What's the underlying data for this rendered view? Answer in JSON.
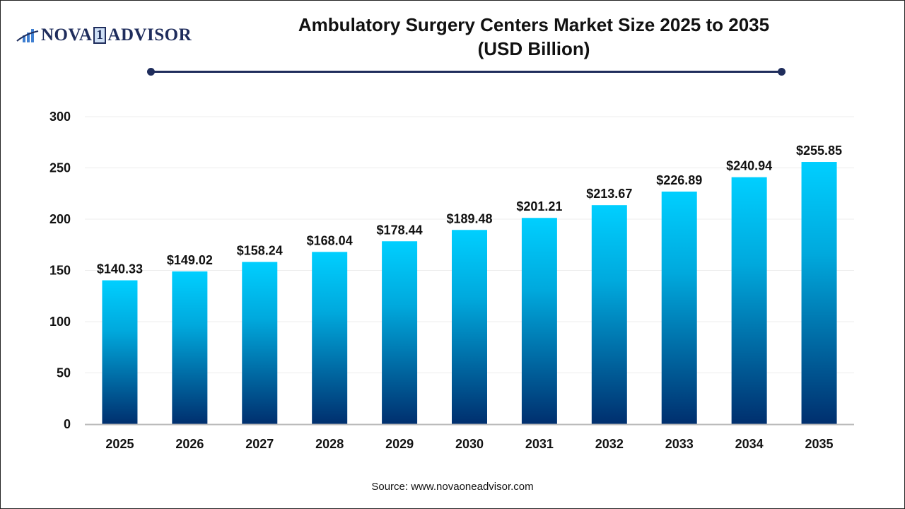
{
  "brand": {
    "logo_text_left": "NOVA",
    "logo_text_mid": "1",
    "logo_text_right": "ADVISOR"
  },
  "source": "Source: www.novaoneadvisor.com",
  "colors": {
    "bar_top": "#00cfff",
    "bar_bottom": "#002f6e",
    "accent": "#1f2d5c"
  },
  "chart_data": {
    "type": "bar",
    "title": "Ambulatory Surgery Centers Market Size 2025 to 2035",
    "subtitle": "(USD Billion)",
    "categories": [
      "2025",
      "2026",
      "2027",
      "2028",
      "2029",
      "2030",
      "2031",
      "2032",
      "2033",
      "2034",
      "2035"
    ],
    "values": [
      140.33,
      149.02,
      158.24,
      168.04,
      178.44,
      189.48,
      201.21,
      213.67,
      226.89,
      240.94,
      255.85
    ],
    "data_labels": [
      "$140.33",
      "$149.02",
      "$158.24",
      "$168.04",
      "$178.44",
      "$189.48",
      "$201.21",
      "$213.67",
      "$226.89",
      "$240.94",
      "$255.85"
    ],
    "yticks": [
      0,
      50,
      100,
      150,
      200,
      250,
      300
    ],
    "ylim": [
      0,
      300
    ],
    "grid": true,
    "xlabel": "",
    "ylabel": ""
  }
}
